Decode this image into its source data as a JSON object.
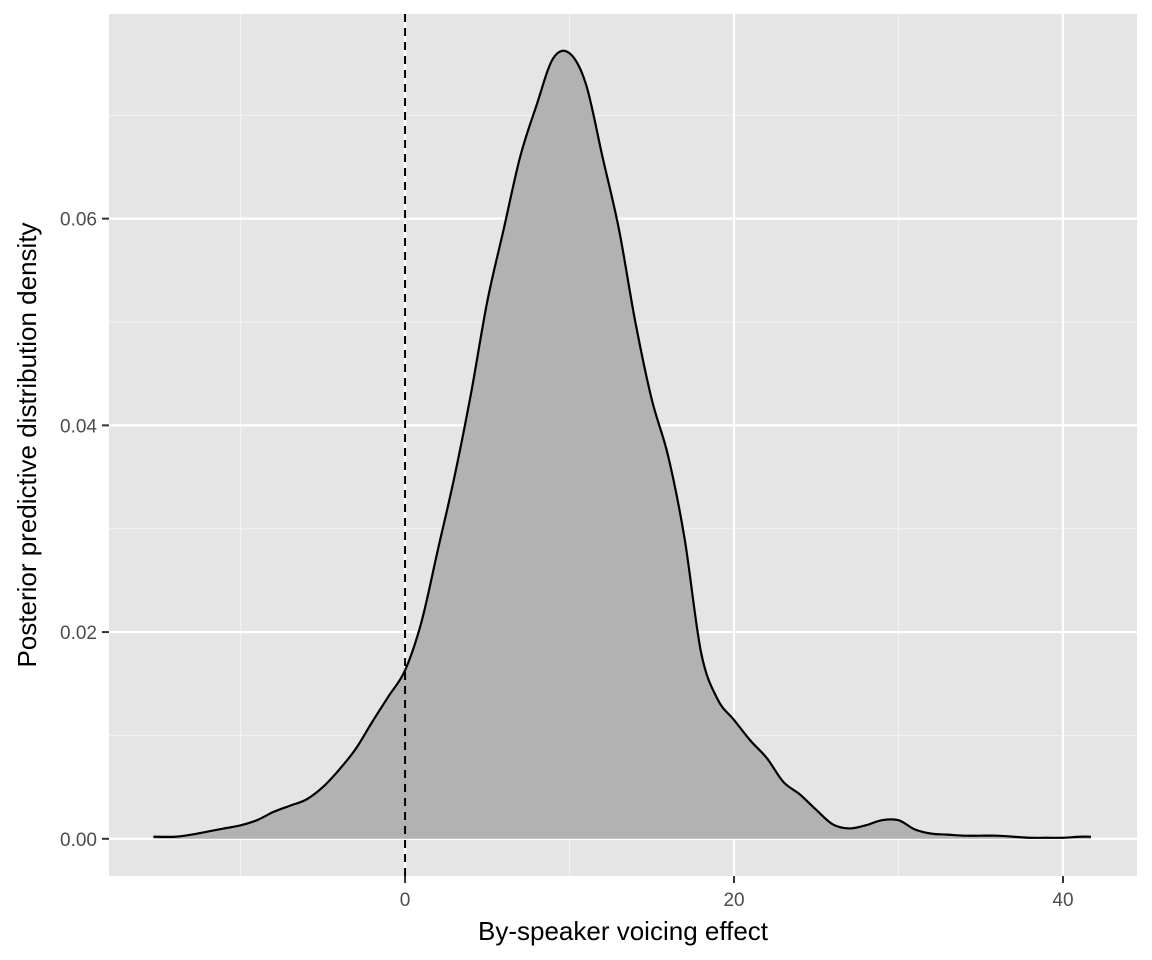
{
  "chart_data": {
    "type": "area",
    "title": "",
    "xlabel": "By-speaker voicing effect",
    "ylabel": "Posterior predictive distribution density",
    "xlim": [
      -18,
      44.5
    ],
    "ylim": [
      -0.0036,
      0.0798
    ],
    "x_ticks": [
      0,
      20,
      40
    ],
    "x_tick_labels": [
      "0",
      "20",
      "40"
    ],
    "y_ticks": [
      0.0,
      0.02,
      0.04,
      0.06
    ],
    "y_tick_labels": [
      "0.00",
      "0.02",
      "0.04",
      "0.06"
    ],
    "grid": true,
    "legend": "none",
    "reference_line": {
      "x": 0,
      "style": "dashed",
      "color": "#000000"
    },
    "fill_color": "#b2b2b2",
    "line_color": "#000000",
    "panel_color": "#e5e5e5",
    "series": [
      {
        "x": [
          -15.3,
          -14,
          -13,
          -12,
          -11,
          -10,
          -9,
          -8,
          -7,
          -6,
          -5,
          -4,
          -3,
          -2,
          -1,
          0,
          1,
          2,
          3,
          4,
          5,
          6,
          7,
          8,
          9,
          10,
          11,
          12,
          13,
          14,
          15,
          16,
          17,
          18,
          19,
          20,
          21,
          22,
          23,
          24,
          25,
          26,
          27,
          28,
          29,
          30,
          31,
          32,
          33,
          34,
          35,
          36,
          37,
          38,
          39,
          40,
          41,
          41.7
        ],
        "y": [
          0.0002,
          0.0002,
          0.0004,
          0.0007,
          0.001,
          0.0013,
          0.0018,
          0.0026,
          0.0032,
          0.0038,
          0.005,
          0.0067,
          0.0087,
          0.0113,
          0.0138,
          0.0163,
          0.021,
          0.028,
          0.035,
          0.043,
          0.052,
          0.059,
          0.066,
          0.071,
          0.0755,
          0.076,
          0.073,
          0.066,
          0.059,
          0.05,
          0.0425,
          0.037,
          0.029,
          0.018,
          0.0135,
          0.0115,
          0.0095,
          0.0078,
          0.0055,
          0.0043,
          0.0028,
          0.0014,
          0.001,
          0.0013,
          0.0018,
          0.0018,
          0.0009,
          0.0005,
          0.0004,
          0.0003,
          0.0003,
          0.0003,
          0.0002,
          0.0001,
          0.0001,
          0.0001,
          0.0002,
          0.0002
        ]
      }
    ]
  }
}
